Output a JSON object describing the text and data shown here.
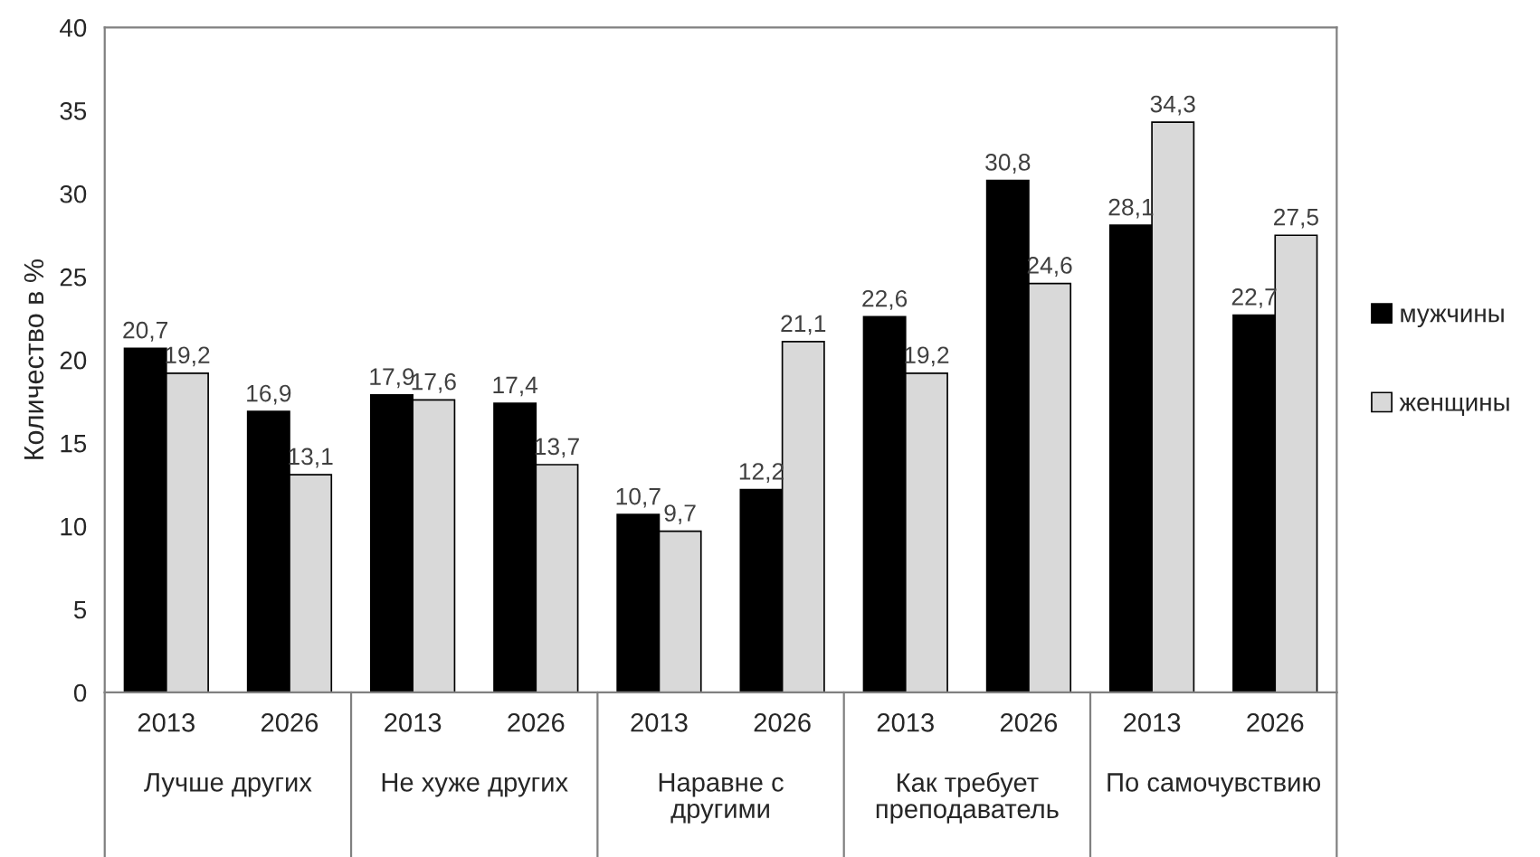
{
  "chart_data": {
    "type": "bar",
    "ylabel": "Количество в %",
    "categories": [
      "2013",
      "2026",
      "2013",
      "2026",
      "2013",
      "2026",
      "2013",
      "2026",
      "2013",
      "2026"
    ],
    "annotations": [
      "Лучше других",
      "Не хуже других",
      "Наравне с другими",
      "Как требует преподаватель",
      "По самочувствию"
    ],
    "series": [
      {
        "name": "мужчины",
        "color": "#000000",
        "values": [
          20.7,
          16.9,
          17.9,
          17.4,
          10.7,
          12.2,
          22.6,
          30.8,
          28.1,
          22.7
        ],
        "value_labels": [
          "20,7",
          "16,9",
          "17,9",
          "17,4",
          "10,7",
          "12,2",
          "22,6",
          "30,8",
          "28,1",
          "22,7"
        ]
      },
      {
        "name": "женщины",
        "color": "#d9d9d9",
        "values": [
          19.2,
          13.1,
          17.6,
          13.7,
          9.7,
          21.1,
          19.2,
          24.6,
          34.3,
          27.5
        ],
        "value_labels": [
          "19,2",
          "13,1",
          "17,6",
          "13,7",
          "9,7",
          "21,1",
          "19,2",
          "24,6",
          "34,3",
          "27,5"
        ]
      }
    ],
    "ylim": [
      0,
      40
    ],
    "yticks": [
      0,
      5,
      10,
      15,
      20,
      25,
      30,
      35,
      40
    ],
    "grid": false,
    "legend": "right"
  }
}
